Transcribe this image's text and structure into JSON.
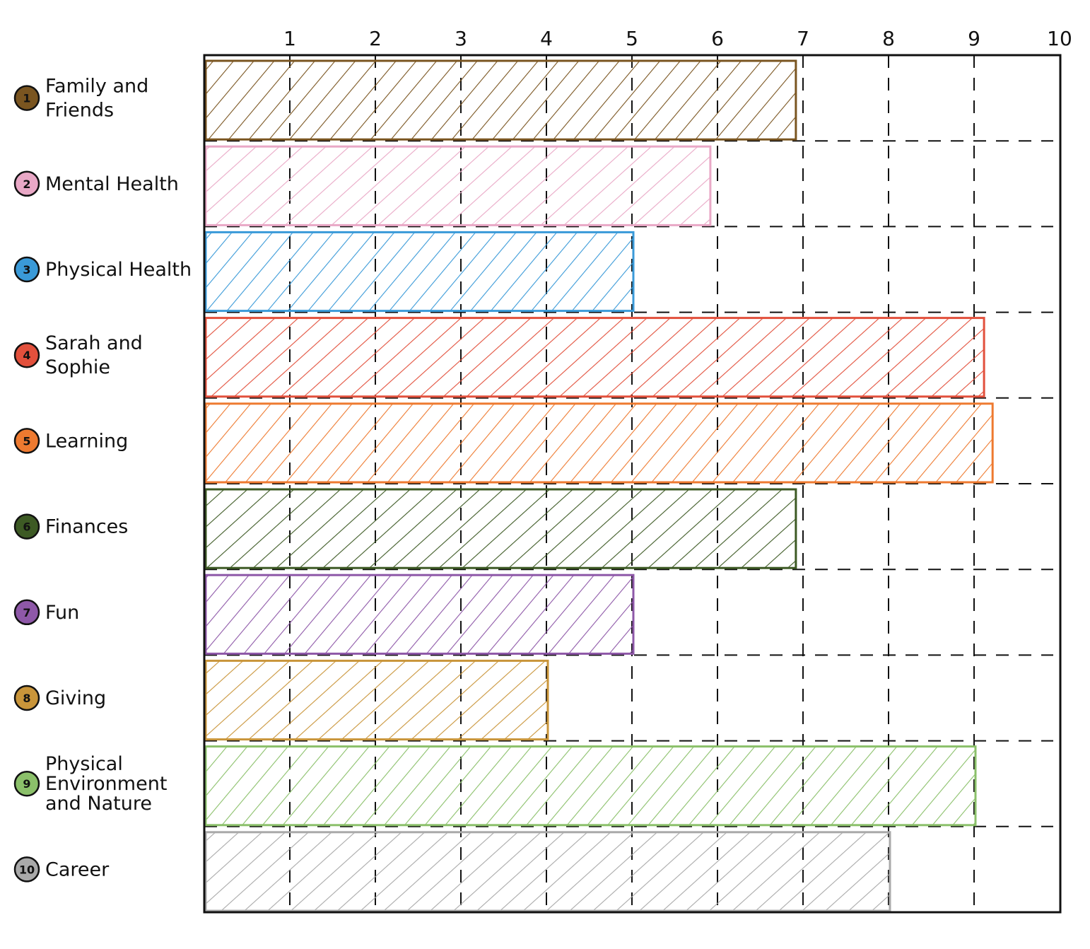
{
  "chart_data": {
    "type": "bar",
    "orientation": "horizontal",
    "title": "",
    "xlabel": "",
    "ylabel": "",
    "xlim": [
      0,
      10
    ],
    "xticks": [
      "1",
      "2",
      "3",
      "4",
      "5",
      "6",
      "7",
      "8",
      "9",
      "10"
    ],
    "grid": true,
    "categories": [
      {
        "num": "1",
        "lines": [
          "Family and",
          "Friends"
        ],
        "value": 6.9,
        "color": "#7a5520"
      },
      {
        "num": "2",
        "lines": [
          "Mental Health"
        ],
        "value": 5.9,
        "color": "#e9a8c6"
      },
      {
        "num": "3",
        "lines": [
          "Physical Health"
        ],
        "value": 5.0,
        "color": "#3a9ad8"
      },
      {
        "num": "4",
        "lines": [
          "Sarah and",
          "Sophie"
        ],
        "value": 9.1,
        "color": "#e2503c"
      },
      {
        "num": "5",
        "lines": [
          "Learning"
        ],
        "value": 9.2,
        "color": "#ee7a30"
      },
      {
        "num": "6",
        "lines": [
          "Finances"
        ],
        "value": 6.9,
        "color": "#3d5a24"
      },
      {
        "num": "7",
        "lines": [
          "Fun"
        ],
        "value": 5.0,
        "color": "#8e58a8"
      },
      {
        "num": "8",
        "lines": [
          "Giving"
        ],
        "value": 4.0,
        "color": "#c9953a"
      },
      {
        "num": "9",
        "lines": [
          "Physical",
          "Environment",
          "and Nature"
        ],
        "value": 9.0,
        "color": "#8bc06a"
      },
      {
        "num": "10",
        "lines": [
          "Career"
        ],
        "value": 8.0,
        "color": "#a9a9a9"
      }
    ]
  }
}
